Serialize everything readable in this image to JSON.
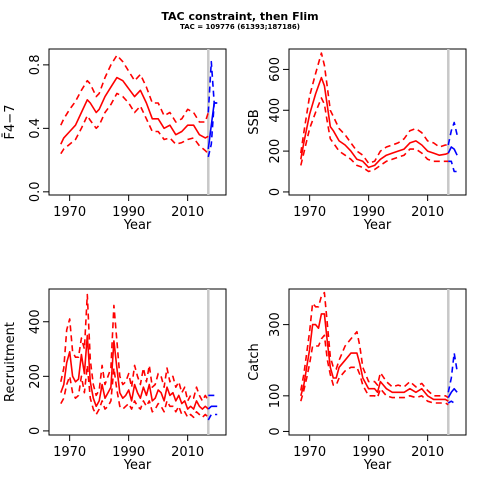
{
  "title": "TAC constraint, then Flim",
  "subtitle": "TAC = 109776 (61393;187186)",
  "colors": {
    "historical": "#ff0000",
    "forecast": "#0000ff",
    "vline": "#c8c8c8",
    "axis": "#000000"
  },
  "chart_data": [
    {
      "type": "line",
      "id": "fbar",
      "ylabel": "F̄4−7",
      "xlabel": "Year",
      "xlim": [
        1963,
        2023
      ],
      "ylim": [
        -0.02,
        0.9
      ],
      "xticks": [
        1970,
        1990,
        2010
      ],
      "yticks": [
        0.0,
        0.4,
        0.8
      ],
      "ytick_labels": [
        "0.0",
        "0.4",
        "0.8"
      ],
      "vline_x": 2017,
      "hist_x": [
        1967,
        1968,
        1970,
        1972,
        1974,
        1976,
        1977,
        1979,
        1980,
        1982,
        1984,
        1986,
        1988,
        1990,
        1992,
        1994,
        1996,
        1998,
        2000,
        2002,
        2004,
        2006,
        2008,
        2010,
        2012,
        2014,
        2016,
        2017
      ],
      "hist_mid": [
        0.3,
        0.34,
        0.38,
        0.42,
        0.5,
        0.58,
        0.56,
        0.5,
        0.52,
        0.6,
        0.66,
        0.72,
        0.7,
        0.65,
        0.6,
        0.64,
        0.56,
        0.46,
        0.46,
        0.4,
        0.42,
        0.36,
        0.38,
        0.42,
        0.42,
        0.36,
        0.34,
        0.35
      ],
      "hist_upper": [
        0.42,
        0.46,
        0.52,
        0.57,
        0.64,
        0.7,
        0.68,
        0.6,
        0.62,
        0.72,
        0.8,
        0.86,
        0.82,
        0.76,
        0.7,
        0.74,
        0.66,
        0.56,
        0.56,
        0.48,
        0.5,
        0.44,
        0.46,
        0.52,
        0.5,
        0.44,
        0.44,
        0.5
      ],
      "hist_lower": [
        0.24,
        0.27,
        0.3,
        0.33,
        0.4,
        0.48,
        0.45,
        0.4,
        0.42,
        0.5,
        0.55,
        0.62,
        0.6,
        0.56,
        0.5,
        0.54,
        0.46,
        0.38,
        0.38,
        0.33,
        0.34,
        0.3,
        0.31,
        0.33,
        0.34,
        0.29,
        0.26,
        0.24
      ],
      "fc_x": [
        2017,
        2018,
        2019,
        2020
      ],
      "fc_mid": [
        0.27,
        0.42,
        0.56,
        0.56
      ],
      "fc_upper": [
        0.5,
        0.82,
        0.56,
        0.56
      ],
      "fc_lower": [
        0.22,
        0.3,
        0.56,
        0.56
      ]
    },
    {
      "type": "line",
      "id": "ssb",
      "ylabel": "SSB",
      "xlabel": "Year",
      "xlim": [
        1963,
        2023
      ],
      "ylim": [
        -15,
        700
      ],
      "xticks": [
        1970,
        1990,
        2010
      ],
      "yticks": [
        0,
        200,
        400,
        600
      ],
      "ytick_labels": [
        "0",
        "200",
        "400",
        "600"
      ],
      "vline_x": 2017,
      "hist_x": [
        1967,
        1968,
        1970,
        1972,
        1974,
        1975,
        1976,
        1977,
        1978,
        1980,
        1982,
        1984,
        1986,
        1988,
        1990,
        1992,
        1994,
        1996,
        1998,
        2000,
        2002,
        2004,
        2006,
        2008,
        2010,
        2012,
        2014,
        2016,
        2017
      ],
      "hist_mid": [
        160,
        240,
        380,
        480,
        560,
        520,
        420,
        320,
        300,
        250,
        230,
        200,
        160,
        150,
        120,
        130,
        160,
        180,
        190,
        200,
        210,
        240,
        250,
        230,
        200,
        190,
        180,
        185,
        190
      ],
      "hist_upper": [
        190,
        290,
        470,
        580,
        680,
        620,
        510,
        400,
        370,
        310,
        280,
        240,
        200,
        180,
        140,
        150,
        200,
        220,
        230,
        240,
        260,
        300,
        310,
        290,
        250,
        240,
        220,
        230,
        230
      ],
      "hist_lower": [
        130,
        190,
        310,
        390,
        460,
        430,
        340,
        260,
        240,
        200,
        180,
        160,
        130,
        120,
        100,
        110,
        130,
        150,
        160,
        170,
        180,
        210,
        210,
        190,
        160,
        150,
        150,
        150,
        150
      ],
      "fc_x": [
        2017,
        2018,
        2019,
        2020
      ],
      "fc_mid": [
        190,
        220,
        210,
        180
      ],
      "fc_upper": [
        230,
        300,
        340,
        280
      ],
      "fc_lower": [
        150,
        150,
        100,
        100
      ]
    },
    {
      "type": "line",
      "id": "recruitment",
      "ylabel": "Recruitment",
      "xlabel": "Year",
      "xlim": [
        1963,
        2023
      ],
      "ylim": [
        -15,
        520
      ],
      "xticks": [
        1970,
        1990,
        2010
      ],
      "yticks": [
        0,
        200,
        400
      ],
      "ytick_labels": [
        "0",
        "200",
        "400"
      ],
      "vline_x": 2017,
      "hist_x": [
        1967,
        1968,
        1969,
        1970,
        1971,
        1972,
        1973,
        1974,
        1975,
        1976,
        1977,
        1978,
        1979,
        1980,
        1981,
        1982,
        1983,
        1984,
        1985,
        1986,
        1987,
        1988,
        1989,
        1990,
        1991,
        1992,
        1993,
        1994,
        1995,
        1996,
        1997,
        1998,
        1999,
        2000,
        2001,
        2002,
        2003,
        2004,
        2005,
        2006,
        2007,
        2008,
        2009,
        2010,
        2011,
        2012,
        2013,
        2014,
        2015,
        2016,
        2017
      ],
      "hist_mid": [
        140,
        170,
        250,
        290,
        200,
        180,
        190,
        280,
        210,
        350,
        180,
        120,
        90,
        110,
        170,
        120,
        140,
        160,
        330,
        230,
        140,
        120,
        130,
        150,
        110,
        170,
        140,
        120,
        160,
        130,
        170,
        110,
        120,
        150,
        140,
        110,
        160,
        130,
        140,
        110,
        130,
        100,
        110,
        80,
        90,
        80,
        110,
        90,
        80,
        90,
        80
      ],
      "hist_upper": [
        180,
        230,
        370,
        410,
        290,
        270,
        270,
        340,
        300,
        500,
        260,
        170,
        130,
        150,
        240,
        170,
        200,
        230,
        460,
        330,
        200,
        170,
        180,
        210,
        160,
        240,
        200,
        170,
        230,
        180,
        240,
        160,
        170,
        210,
        200,
        160,
        230,
        180,
        200,
        160,
        180,
        140,
        160,
        110,
        130,
        120,
        160,
        130,
        110,
        130,
        110
      ],
      "hist_lower": [
        100,
        120,
        170,
        200,
        140,
        120,
        130,
        200,
        140,
        240,
        120,
        80,
        60,
        80,
        110,
        80,
        90,
        110,
        230,
        150,
        90,
        80,
        90,
        100,
        80,
        110,
        90,
        80,
        110,
        90,
        110,
        70,
        80,
        100,
        90,
        70,
        110,
        90,
        90,
        70,
        90,
        60,
        70,
        50,
        60,
        50,
        70,
        60,
        50,
        60,
        50
      ],
      "fc_x": [
        2017,
        2018,
        2019,
        2020
      ],
      "fc_mid": [
        80,
        90,
        90,
        90
      ],
      "fc_upper": [
        130,
        130,
        130,
        130
      ],
      "fc_lower": [
        40,
        60,
        60,
        60
      ]
    },
    {
      "type": "line",
      "id": "catch",
      "ylabel": "Catch",
      "xlabel": "Year",
      "xlim": [
        1963,
        2023
      ],
      "ylim": [
        -10,
        400
      ],
      "xticks": [
        1970,
        1990,
        2010
      ],
      "yticks": [
        0,
        100,
        300
      ],
      "ytick_labels": [
        "0",
        "100",
        "300"
      ],
      "vline_x": 2017,
      "hist_x": [
        1967,
        1968,
        1969,
        1970,
        1971,
        1972,
        1973,
        1974,
        1975,
        1976,
        1977,
        1978,
        1979,
        1980,
        1982,
        1984,
        1986,
        1987,
        1988,
        1990,
        1992,
        1993,
        1994,
        1996,
        1998,
        2000,
        2002,
        2004,
        2006,
        2008,
        2010,
        2012,
        2014,
        2016,
        2017
      ],
      "hist_mid": [
        100,
        130,
        180,
        230,
        300,
        300,
        290,
        330,
        330,
        250,
        180,
        150,
        150,
        180,
        200,
        220,
        220,
        190,
        150,
        120,
        120,
        110,
        140,
        120,
        110,
        110,
        110,
        120,
        110,
        120,
        100,
        90,
        90,
        90,
        85
      ],
      "hist_upper": [
        115,
        160,
        220,
        280,
        360,
        350,
        350,
        380,
        390,
        300,
        210,
        180,
        175,
        200,
        240,
        260,
        280,
        240,
        180,
        140,
        140,
        130,
        165,
        140,
        125,
        130,
        125,
        140,
        125,
        135,
        115,
        100,
        100,
        100,
        95
      ],
      "hist_lower": [
        85,
        115,
        150,
        190,
        240,
        240,
        240,
        260,
        270,
        200,
        160,
        130,
        130,
        150,
        170,
        180,
        180,
        160,
        130,
        100,
        100,
        95,
        120,
        100,
        95,
        95,
        95,
        100,
        95,
        100,
        85,
        80,
        80,
        80,
        75
      ],
      "fc_x": [
        2017,
        2018,
        2019,
        2020
      ],
      "fc_mid": [
        95,
        110,
        120,
        110
      ],
      "fc_upper": [
        110,
        150,
        220,
        170
      ],
      "fc_lower": [
        80,
        85,
        80,
        80
      ]
    }
  ]
}
